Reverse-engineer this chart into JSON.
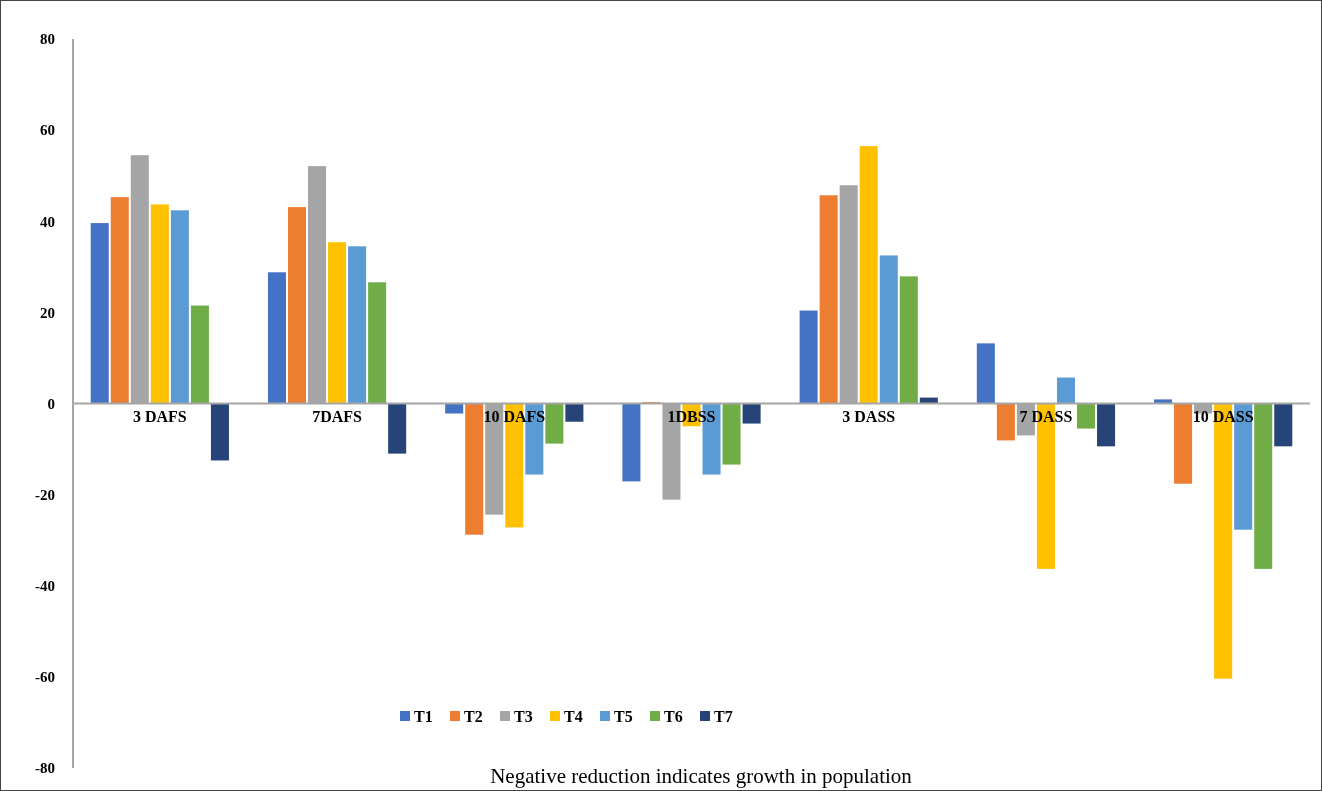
{
  "chart_data": {
    "type": "bar",
    "xlabel": "Negative reduction indicates growth in population",
    "categories": [
      "3 DAFS",
      "7DAFS",
      "10 DAFS",
      "1DBSS",
      "3 DASS",
      "7 DASS",
      "10 DASS"
    ],
    "series": [
      {
        "name": "T1",
        "color": "#4472c4",
        "values": [
          39.6,
          28.8,
          -2.2,
          -17.1,
          20.4,
          13.2,
          0.9
        ]
      },
      {
        "name": "T2",
        "color": "#ed7d31",
        "values": [
          45.3,
          43.1,
          -28.8,
          0.3,
          45.7,
          -8.1,
          -17.6
        ]
      },
      {
        "name": "T3",
        "color": "#a5a5a5",
        "values": [
          54.5,
          52.1,
          -24.4,
          -21.1,
          47.9,
          -7,
          -2.2
        ]
      },
      {
        "name": "T4",
        "color": "#ffc000",
        "values": [
          43.7,
          35.4,
          -27.2,
          -5,
          56.5,
          -36.3,
          -60.4
        ]
      },
      {
        "name": "T5",
        "color": "#5b9bd5",
        "values": [
          42.4,
          34.5,
          -15.6,
          -15.6,
          32.5,
          5.7,
          -27.7
        ]
      },
      {
        "name": "T6",
        "color": "#70ad47",
        "values": [
          21.5,
          26.6,
          -8.8,
          -13.4,
          27.9,
          -5.5,
          -36.3
        ]
      },
      {
        "name": "T7",
        "color": "#264478",
        "values": [
          -12.5,
          -11,
          -4,
          -4.4,
          1.3,
          -9.4,
          -9.4
        ]
      }
    ],
    "ylim": [
      -80,
      80
    ],
    "yticks": [
      -80,
      -60,
      -40,
      -20,
      0,
      20,
      40,
      60,
      80
    ],
    "grid": false,
    "legend": "bottom"
  }
}
